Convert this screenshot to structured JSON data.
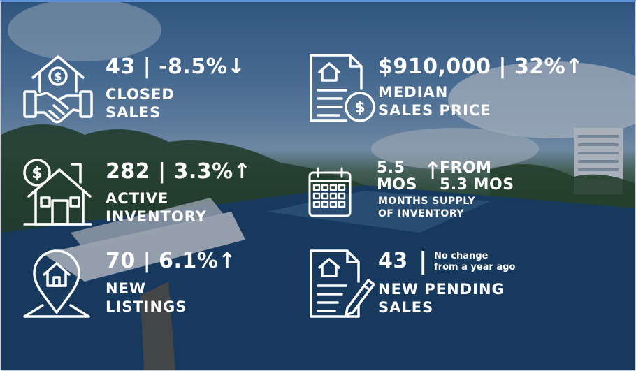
{
  "stats": {
    "closed_sales": {
      "headline": "43 | -8.5%↓",
      "label_line1": "CLOSED",
      "label_line2": "SALES",
      "icon": "house-handshake-icon"
    },
    "median_price": {
      "headline": "$910,000 | 32%↑",
      "label_line1": "MEDIAN",
      "label_line2": "SALES PRICE",
      "icon": "house-document-dollar-icon"
    },
    "active_inventory": {
      "headline": "282 | 3.3%↑",
      "label_line1": "ACTIVE",
      "label_line2": "INVENTORY",
      "icon": "house-dollar-icon"
    },
    "months_supply": {
      "value_line1": "5.5",
      "value_line2": "MOS",
      "arrow": "↑",
      "from_line1": "FROM",
      "from_line2": "5.3 MOS",
      "label_line1": "MONTHS SUPPLY",
      "label_line2": "OF INVENTORY",
      "icon": "calendar-icon"
    },
    "new_listings": {
      "headline": "70 | 6.1%↑",
      "label_line1": "NEW",
      "label_line2": "LISTINGS",
      "icon": "location-house-icon"
    },
    "pending_sales": {
      "value": "43",
      "separator": "|",
      "note_line1": "No change",
      "note_line2": "from a year ago",
      "label_line1": "NEW PENDING",
      "label_line2": "SALES",
      "icon": "document-pen-icon"
    }
  },
  "colors": {
    "text": "#ffffff",
    "frame_top": "#5b8fd6"
  }
}
